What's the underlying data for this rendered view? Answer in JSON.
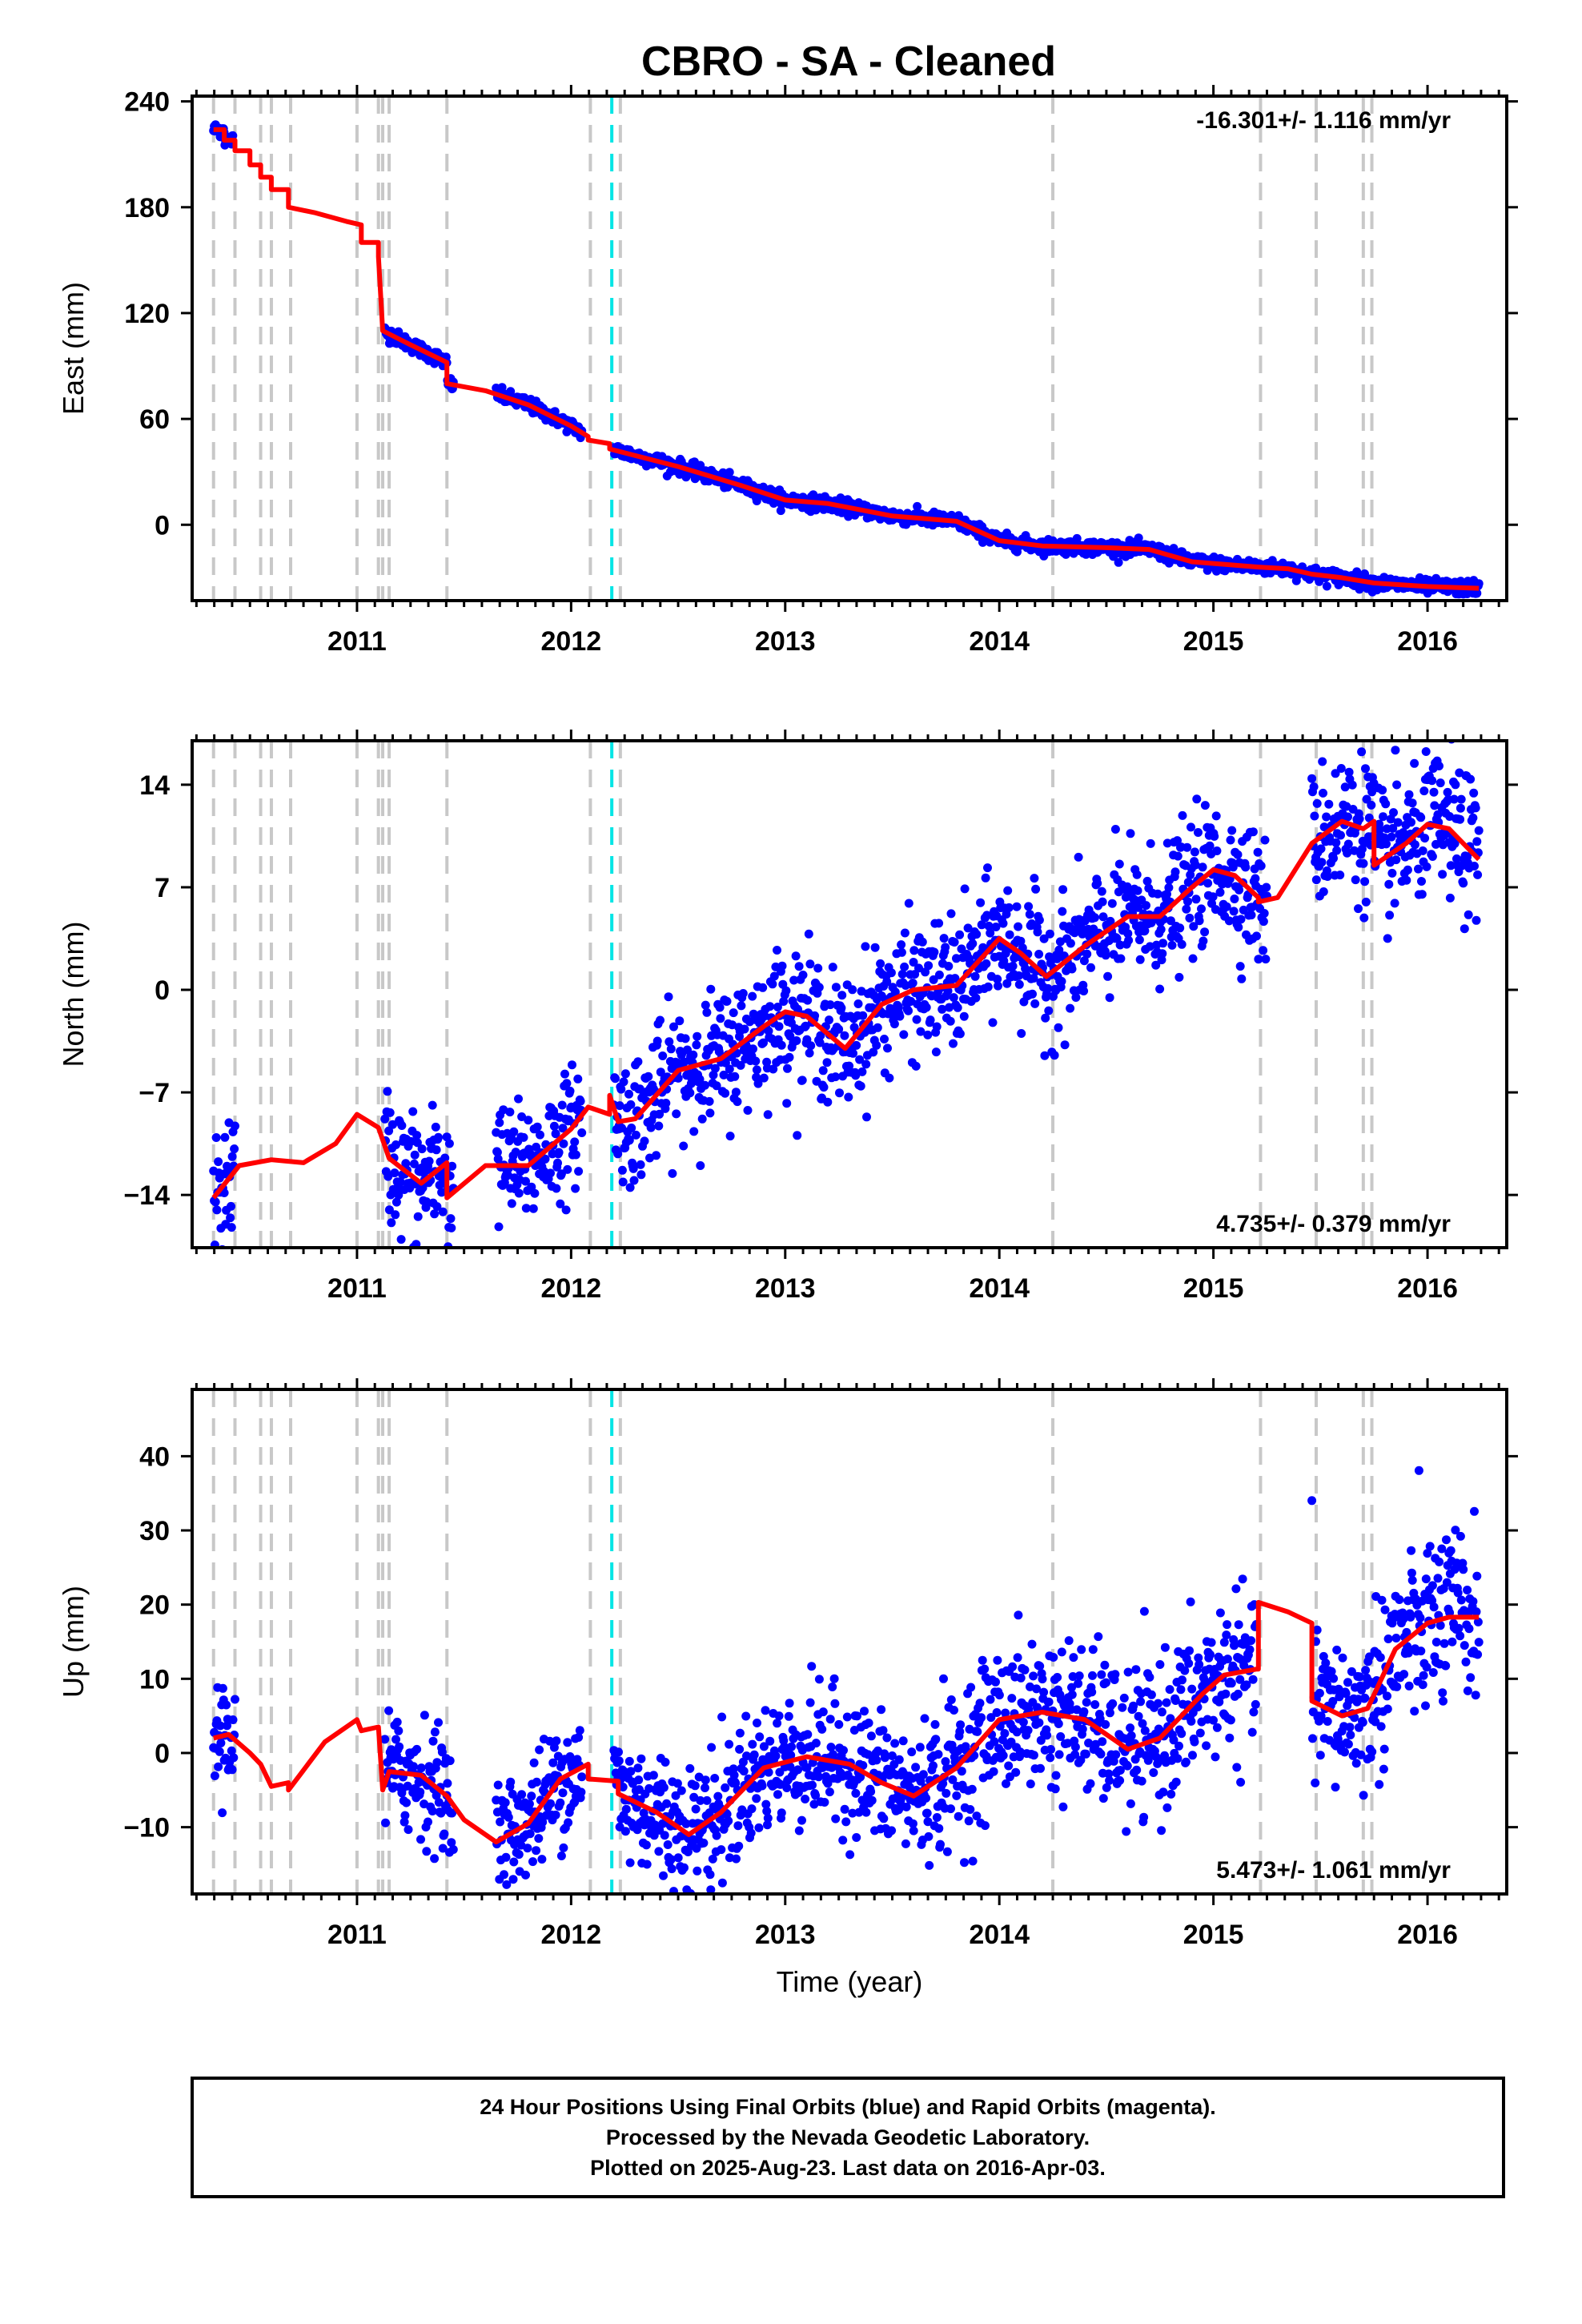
{
  "title": "CBRO  - SA - Cleaned",
  "colors": {
    "data_points": "#0000ff",
    "model_line": "#ff0000",
    "event_line": "#c8c8c8",
    "special_line": "#00e5e5",
    "frame": "#000000"
  },
  "chart_data": [
    {
      "type": "scatter",
      "name": "east-panel",
      "ylabel": "East (mm)",
      "xlabel": "",
      "rate_label": "-16.301+/- 1.116 mm/yr",
      "xlim": [
        2010.23,
        2016.37
      ],
      "ylim": [
        -43,
        243
      ],
      "yticks": [
        0,
        60,
        120,
        180,
        240
      ],
      "ytick_labels": [
        "0",
        "60",
        "120",
        "180",
        "240"
      ],
      "xticks": [
        2011,
        2012,
        2013,
        2014,
        2015,
        2016
      ],
      "xtick_labels": [
        "2011",
        "2012",
        "2013",
        "2014",
        "2015",
        "2016"
      ],
      "scatter_segments": [
        {
          "x": [
            2010.33,
            2010.42
          ],
          "y": [
            236,
            207
          ],
          "spread": 2
        },
        {
          "x": [
            2011.13,
            2011.45
          ],
          "y": [
            110,
            87
          ],
          "spread": 2
        },
        {
          "x": [
            2011.65,
            2012.05
          ],
          "y": [
            72,
            50
          ],
          "spread": 2
        },
        {
          "x": [
            2012.2,
            2016.24
          ],
          "y": [
            42,
            -34
          ],
          "spread": 2
        }
      ],
      "model_line": [
        [
          2010.33,
          224
        ],
        [
          2010.38,
          224
        ],
        [
          2010.38,
          218
        ],
        [
          2010.43,
          218
        ],
        [
          2010.43,
          212
        ],
        [
          2010.5,
          212
        ],
        [
          2010.5,
          204
        ],
        [
          2010.55,
          204
        ],
        [
          2010.55,
          197
        ],
        [
          2010.6,
          197
        ],
        [
          2010.6,
          190
        ],
        [
          2010.68,
          190
        ],
        [
          2010.68,
          180
        ],
        [
          2010.8,
          177
        ],
        [
          2010.95,
          172
        ],
        [
          2011.02,
          170
        ],
        [
          2011.02,
          160
        ],
        [
          2011.1,
          160
        ],
        [
          2011.1,
          152
        ],
        [
          2011.12,
          110
        ],
        [
          2011.25,
          102
        ],
        [
          2011.42,
          92
        ],
        [
          2011.42,
          80
        ],
        [
          2011.6,
          76
        ],
        [
          2011.8,
          68
        ],
        [
          2012.0,
          56
        ],
        [
          2012.08,
          50
        ],
        [
          2012.08,
          48
        ],
        [
          2012.18,
          46
        ],
        [
          2012.18,
          43
        ],
        [
          2012.5,
          33
        ],
        [
          2012.8,
          22
        ],
        [
          2013.0,
          14
        ],
        [
          2013.2,
          12
        ],
        [
          2013.5,
          5
        ],
        [
          2013.8,
          2
        ],
        [
          2014.0,
          -9
        ],
        [
          2014.2,
          -12
        ],
        [
          2014.5,
          -13
        ],
        [
          2014.7,
          -14
        ],
        [
          2014.9,
          -21
        ],
        [
          2015.21,
          -24
        ],
        [
          2015.35,
          -25
        ],
        [
          2015.46,
          -28
        ],
        [
          2015.6,
          -30
        ],
        [
          2015.75,
          -33
        ],
        [
          2016.0,
          -35
        ],
        [
          2016.24,
          -36
        ]
      ]
    },
    {
      "type": "scatter",
      "name": "north-panel",
      "ylabel": "North (mm)",
      "xlabel": "",
      "rate_label": "4.735+/- 0.379 mm/yr",
      "xlim": [
        2010.23,
        2016.37
      ],
      "ylim": [
        -17.6,
        17.0
      ],
      "yticks": [
        -14,
        -7,
        0,
        7,
        14
      ],
      "ytick_labels": [
        "−14",
        "−7",
        "0",
        "7",
        "14"
      ],
      "xticks": [
        2011,
        2012,
        2013,
        2014,
        2015,
        2016
      ],
      "xtick_labels": [
        "2011",
        "2012",
        "2013",
        "2014",
        "2015",
        "2016"
      ],
      "scatter_segments": [
        {
          "x": [
            2010.33,
            2010.43
          ],
          "y": [
            -14,
            -12.5
          ],
          "spread": 2.2
        },
        {
          "x": [
            2011.13,
            2011.45
          ],
          "y": [
            -12,
            -13
          ],
          "spread": 2.2
        },
        {
          "x": [
            2011.65,
            2012.05
          ],
          "y": [
            -11.5,
            -8.5
          ],
          "spread": 2.0
        },
        {
          "x": [
            2012.2,
            2015.25
          ],
          "y": [
            -7.5,
            7.5
          ],
          "spread": 2.2
        },
        {
          "x": [
            2015.46,
            2016.24
          ],
          "y": [
            11,
            8
          ],
          "spread": 2.4
        }
      ],
      "model_line": [
        [
          2010.33,
          -14.2
        ],
        [
          2010.45,
          -12
        ],
        [
          2010.6,
          -11.6
        ],
        [
          2010.75,
          -11.8
        ],
        [
          2010.9,
          -10.5
        ],
        [
          2011.0,
          -8.5
        ],
        [
          2011.1,
          -9.4
        ],
        [
          2011.15,
          -11.5
        ],
        [
          2011.3,
          -13.2
        ],
        [
          2011.42,
          -11.8
        ],
        [
          2011.42,
          -14.2
        ],
        [
          2011.6,
          -12
        ],
        [
          2011.8,
          -12
        ],
        [
          2012.0,
          -9.5
        ],
        [
          2012.08,
          -8.0
        ],
        [
          2012.18,
          -8.5
        ],
        [
          2012.18,
          -7.2
        ],
        [
          2012.22,
          -9.0
        ],
        [
          2012.3,
          -8.8
        ],
        [
          2012.5,
          -5.5
        ],
        [
          2012.7,
          -4.7
        ],
        [
          2012.9,
          -2.5
        ],
        [
          2013.0,
          -1.5
        ],
        [
          2013.1,
          -1.8
        ],
        [
          2013.28,
          -4.0
        ],
        [
          2013.45,
          -1.0
        ],
        [
          2013.6,
          0
        ],
        [
          2013.8,
          0.3
        ],
        [
          2014.0,
          3.5
        ],
        [
          2014.1,
          2.5
        ],
        [
          2014.22,
          0.9
        ],
        [
          2014.4,
          3.0
        ],
        [
          2014.6,
          5.0
        ],
        [
          2014.75,
          5.0
        ],
        [
          2014.9,
          7.0
        ],
        [
          2015.0,
          8.2
        ],
        [
          2015.1,
          7.8
        ],
        [
          2015.21,
          6.3
        ],
        [
          2015.21,
          6.0
        ],
        [
          2015.3,
          6.3
        ],
        [
          2015.46,
          10.0
        ],
        [
          2015.6,
          11.5
        ],
        [
          2015.7,
          11.0
        ],
        [
          2015.75,
          11.5
        ],
        [
          2015.75,
          8.5
        ],
        [
          2015.9,
          10
        ],
        [
          2016.0,
          11.3
        ],
        [
          2016.1,
          11.0
        ],
        [
          2016.24,
          8.9
        ]
      ]
    },
    {
      "type": "scatter",
      "name": "up-panel",
      "ylabel": "Up (mm)",
      "xlabel": "Time (year)",
      "rate_label": "5.473+/- 1.061 mm/yr",
      "xlim": [
        2010.23,
        2016.37
      ],
      "ylim": [
        -19,
        49
      ],
      "yticks": [
        -10,
        0,
        10,
        20,
        30,
        40
      ],
      "ytick_labels": [
        "−10",
        "0",
        "10",
        "20",
        "30",
        "40"
      ],
      "xticks": [
        2011,
        2012,
        2013,
        2014,
        2015,
        2016
      ],
      "xtick_labels": [
        "2011",
        "2012",
        "2013",
        "2014",
        "2015",
        "2016"
      ],
      "scatter_segments": [
        {
          "x": [
            2010.33,
            2010.43
          ],
          "y": [
            3,
            1
          ],
          "spread": 4
        },
        {
          "x": [
            2011.13,
            2011.45
          ],
          "y": [
            -2,
            -4
          ],
          "spread": 4
        },
        {
          "x": [
            2011.65,
            2012.05
          ],
          "y": [
            -8,
            -2
          ],
          "spread": 4
        },
        {
          "x": [
            2012.2,
            2013.7
          ],
          "y": [
            -6,
            -4
          ],
          "spread": 4.5
        },
        {
          "x": [
            2013.7,
            2015.2
          ],
          "y": [
            2,
            12
          ],
          "spread": 5
        },
        {
          "x": [
            2015.46,
            2015.75
          ],
          "y": [
            6,
            6
          ],
          "spread": 5
        },
        {
          "x": [
            2015.75,
            2016.24
          ],
          "y": [
            12,
            20
          ],
          "spread": 6
        }
      ],
      "model_line": [
        [
          2010.33,
          2
        ],
        [
          2010.4,
          2.5
        ],
        [
          2010.5,
          0
        ],
        [
          2010.55,
          -1.5
        ],
        [
          2010.6,
          -4.5
        ],
        [
          2010.68,
          -4
        ],
        [
          2010.68,
          -5
        ],
        [
          2010.85,
          1.5
        ],
        [
          2011.0,
          4.5
        ],
        [
          2011.02,
          3
        ],
        [
          2011.1,
          3.5
        ],
        [
          2011.12,
          -5
        ],
        [
          2011.15,
          -2.5
        ],
        [
          2011.3,
          -3.0
        ],
        [
          2011.42,
          -5.8
        ],
        [
          2011.5,
          -9
        ],
        [
          2011.65,
          -12
        ],
        [
          2011.8,
          -9.5
        ],
        [
          2011.95,
          -3.5
        ],
        [
          2012.08,
          -1.5
        ],
        [
          2012.08,
          -3.5
        ],
        [
          2012.22,
          -3.8
        ],
        [
          2012.22,
          -5.5
        ],
        [
          2012.4,
          -8
        ],
        [
          2012.55,
          -11
        ],
        [
          2012.7,
          -8
        ],
        [
          2012.9,
          -2
        ],
        [
          2013.1,
          -0.5
        ],
        [
          2013.3,
          -1.5
        ],
        [
          2013.45,
          -4
        ],
        [
          2013.6,
          -5.8
        ],
        [
          2013.8,
          -2
        ],
        [
          2014.0,
          4.5
        ],
        [
          2014.2,
          5.5
        ],
        [
          2014.4,
          4.5
        ],
        [
          2014.6,
          0.5
        ],
        [
          2014.75,
          2
        ],
        [
          2014.95,
          8
        ],
        [
          2015.05,
          10.5
        ],
        [
          2015.2,
          11.3
        ],
        [
          2015.21,
          11.3
        ],
        [
          2015.21,
          20.3
        ],
        [
          2015.35,
          19
        ],
        [
          2015.46,
          17.5
        ],
        [
          2015.46,
          7
        ],
        [
          2015.6,
          5
        ],
        [
          2015.72,
          6
        ],
        [
          2015.85,
          14
        ],
        [
          2016.0,
          17.5
        ],
        [
          2016.1,
          18.3
        ],
        [
          2016.24,
          18.3
        ]
      ]
    }
  ],
  "event_lines_x": [
    2010.33,
    2010.43,
    2010.55,
    2010.6,
    2010.69,
    2011.0,
    2011.1,
    2011.12,
    2011.15,
    2011.42,
    2012.09,
    2012.23,
    2014.25,
    2015.22,
    2015.48,
    2015.7,
    2015.74
  ],
  "special_lines_x": [
    2012.19
  ],
  "footer": {
    "line1": "24 Hour Positions Using Final Orbits (blue) and Rapid Orbits (magenta).",
    "line2": "Processed by the Nevada Geodetic Laboratory.",
    "line3": "Plotted on 2025-Aug-23. Last data on 2016-Apr-03."
  }
}
